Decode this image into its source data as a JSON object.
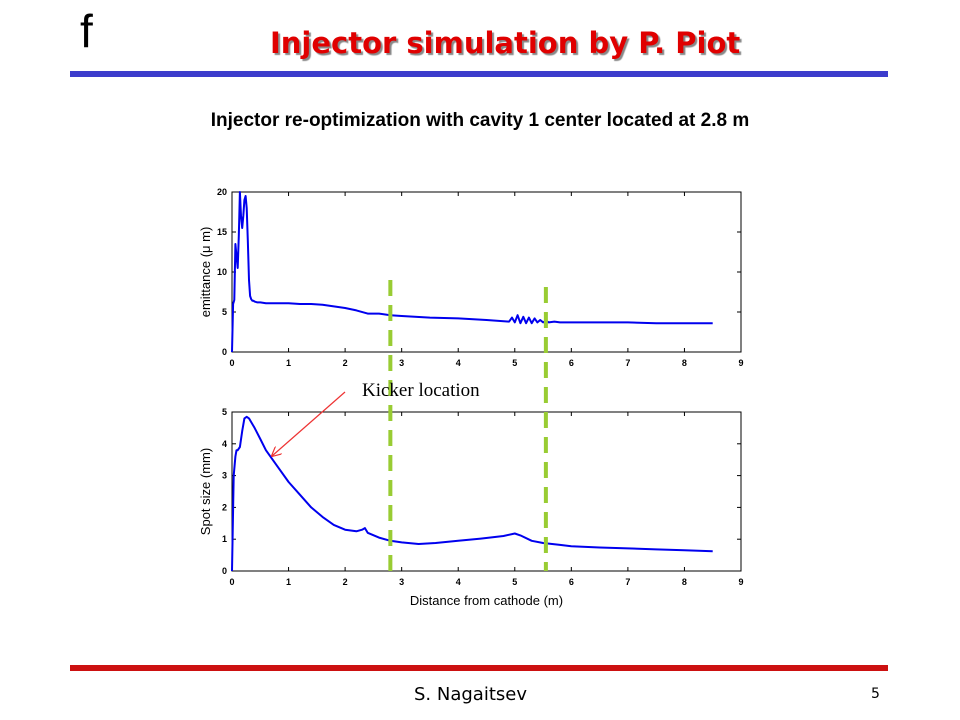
{
  "header": {
    "logo": "f",
    "title": "Injector simulation by P. Piot"
  },
  "subtitle": "Injector re-optimization with cavity 1 center located at 2.8 m",
  "annotation": {
    "text": "Kicker location"
  },
  "footer": {
    "author": "S. Nagaitsev",
    "page": "5"
  },
  "colors": {
    "series": "#0000ee",
    "marker": "#99cc33",
    "arrow": "#ee3333",
    "title": "#e00000"
  },
  "chart_data": [
    {
      "type": "line",
      "title": "",
      "xlabel": "",
      "ylabel": "emittance (μ m)",
      "xlim": [
        0,
        9
      ],
      "ylim": [
        0,
        20
      ],
      "xticks": [
        "0",
        "1",
        "2",
        "3",
        "4",
        "5",
        "6",
        "7",
        "8",
        "9"
      ],
      "yticks": [
        "0",
        "5",
        "10",
        "15",
        "20"
      ],
      "grid": false,
      "series": [
        {
          "x": [
            0.0,
            0.02,
            0.04,
            0.06,
            0.08,
            0.1,
            0.12,
            0.14,
            0.16,
            0.18,
            0.2,
            0.22,
            0.24,
            0.26,
            0.28,
            0.3,
            0.32,
            0.34,
            0.36,
            0.38,
            0.4,
            0.45,
            0.5,
            0.6,
            0.8,
            1.0,
            1.2,
            1.4,
            1.6,
            1.8,
            2.0,
            2.2,
            2.4,
            2.6,
            2.8,
            3.0,
            3.5,
            4.0,
            4.5,
            4.9,
            4.95,
            5.0,
            5.05,
            5.1,
            5.15,
            5.2,
            5.25,
            5.3,
            5.35,
            5.4,
            5.45,
            5.5,
            5.55,
            5.6,
            5.7,
            5.8,
            6.0,
            6.5,
            7.0,
            7.5,
            8.0,
            8.5
          ],
          "y": [
            0.0,
            6.0,
            6.5,
            13.5,
            12.0,
            10.5,
            14.5,
            20.0,
            17.0,
            15.5,
            17.0,
            19.0,
            19.5,
            18.0,
            14.0,
            9.0,
            7.0,
            6.6,
            6.4,
            6.4,
            6.3,
            6.2,
            6.2,
            6.1,
            6.1,
            6.1,
            6.0,
            6.0,
            5.9,
            5.7,
            5.5,
            5.2,
            4.8,
            4.8,
            4.6,
            4.5,
            4.3,
            4.2,
            4.0,
            3.8,
            4.3,
            3.7,
            4.6,
            3.6,
            4.4,
            3.6,
            4.3,
            3.6,
            4.2,
            3.7,
            4.0,
            3.7,
            3.9,
            3.7,
            3.8,
            3.7,
            3.7,
            3.7,
            3.7,
            3.6,
            3.6,
            3.6
          ]
        }
      ]
    },
    {
      "type": "line",
      "title": "",
      "xlabel": "Distance from cathode (m)",
      "ylabel": "Spot size (mm)",
      "xlim": [
        0,
        9
      ],
      "ylim": [
        0,
        5
      ],
      "xticks": [
        "0",
        "1",
        "2",
        "3",
        "4",
        "5",
        "6",
        "7",
        "8",
        "9"
      ],
      "yticks": [
        "0",
        "1",
        "2",
        "3",
        "4",
        "5"
      ],
      "grid": false,
      "series": [
        {
          "x": [
            0.0,
            0.03,
            0.06,
            0.08,
            0.1,
            0.14,
            0.18,
            0.22,
            0.26,
            0.3,
            0.4,
            0.5,
            0.6,
            0.8,
            1.0,
            1.2,
            1.4,
            1.6,
            1.8,
            2.0,
            2.2,
            2.3,
            2.35,
            2.4,
            2.6,
            2.8,
            3.0,
            3.3,
            3.6,
            4.0,
            4.4,
            4.8,
            5.0,
            5.1,
            5.3,
            5.5,
            5.8,
            6.0,
            6.5,
            7.0,
            7.5,
            8.0,
            8.5
          ],
          "y": [
            0.0,
            3.0,
            3.6,
            3.8,
            3.8,
            3.9,
            4.4,
            4.8,
            4.85,
            4.8,
            4.5,
            4.15,
            3.8,
            3.3,
            2.8,
            2.4,
            2.0,
            1.7,
            1.45,
            1.3,
            1.25,
            1.3,
            1.35,
            1.2,
            1.05,
            0.95,
            0.9,
            0.85,
            0.88,
            0.95,
            1.02,
            1.1,
            1.18,
            1.12,
            0.95,
            0.88,
            0.82,
            0.78,
            0.74,
            0.71,
            0.68,
            0.65,
            0.62
          ]
        }
      ]
    }
  ],
  "markers": {
    "x": [
      2.8,
      5.55
    ]
  }
}
